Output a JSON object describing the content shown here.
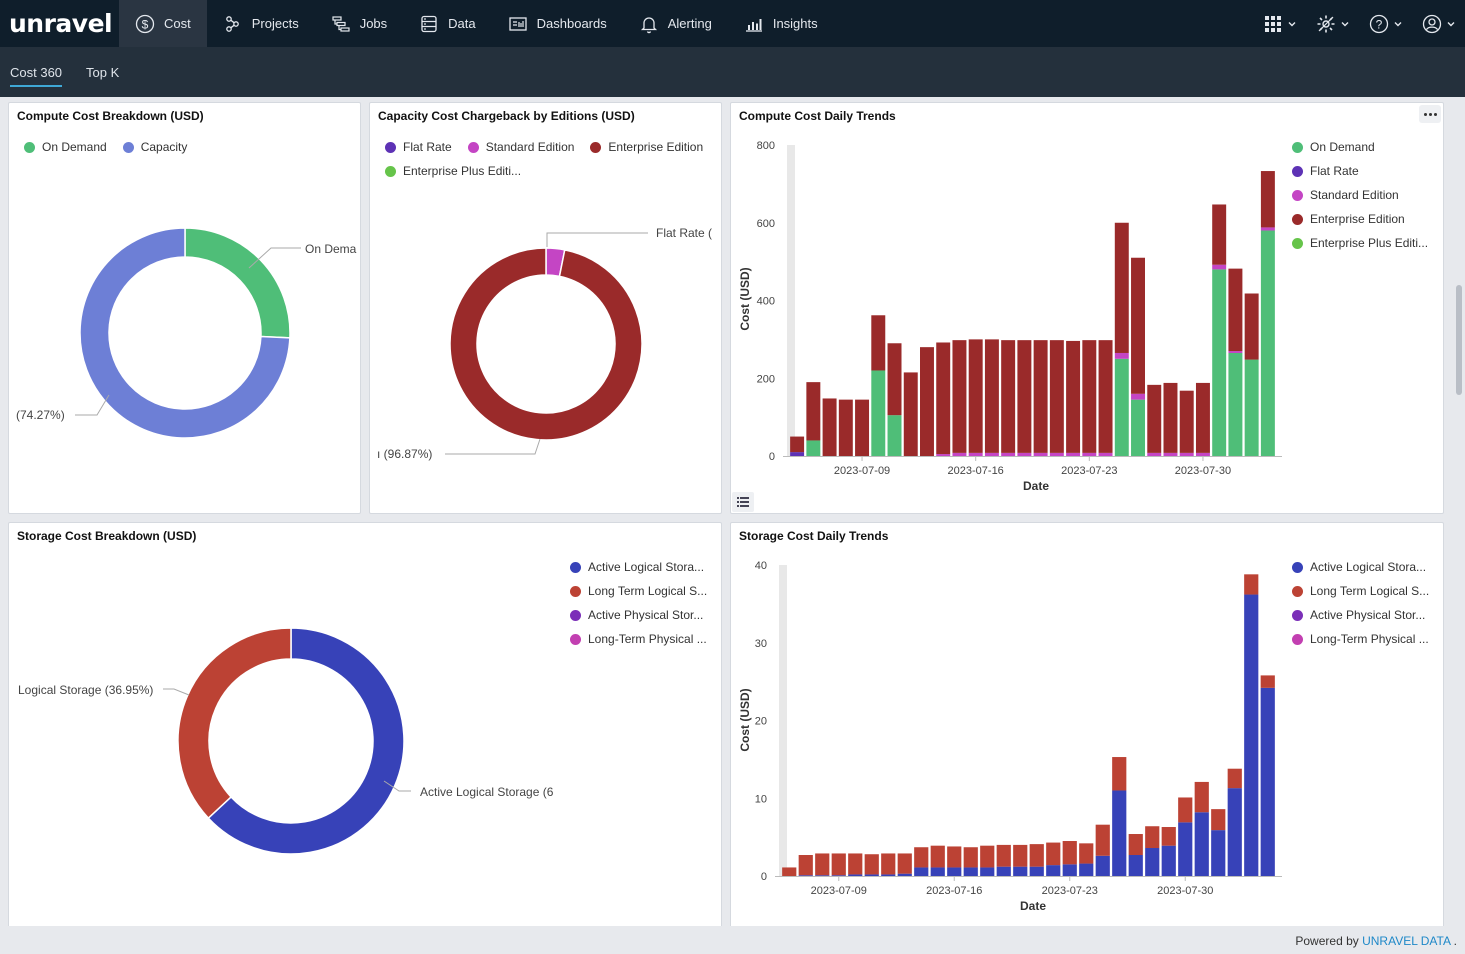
{
  "nav": {
    "logo": "unravel",
    "items": [
      {
        "label": "Cost",
        "icon": "dollar-circle-icon",
        "active": true
      },
      {
        "label": "Projects",
        "icon": "projects-icon"
      },
      {
        "label": "Jobs",
        "icon": "jobs-icon"
      },
      {
        "label": "Data",
        "icon": "database-icon"
      },
      {
        "label": "Dashboards",
        "icon": "dashboard-icon"
      },
      {
        "label": "Alerting",
        "icon": "bell-icon"
      },
      {
        "label": "Insights",
        "icon": "bar-chart-icon"
      }
    ],
    "right_icons": [
      "apps-grid-icon",
      "settings-gear-icon",
      "help-icon",
      "user-icon"
    ]
  },
  "subnav": {
    "tabs": [
      {
        "label": "Cost 360",
        "active": true
      },
      {
        "label": "Top K"
      }
    ]
  },
  "colors": {
    "on_demand": "#4fbe78",
    "capacity": "#6d7fd6",
    "flat_rate": "#5d32b5",
    "standard": "#c445c4",
    "enterprise": "#9a2a2a",
    "enterprise_plus": "#66c44a",
    "active_logical": "#3742b8",
    "long_term_logical": "#bc4234",
    "active_physical": "#7b2fb8",
    "long_term_physical": "#c23fb1"
  },
  "panels": {
    "compute_breakdown": {
      "title": "Compute Cost Breakdown (USD)",
      "legend": [
        "On Demand",
        "Capacity"
      ],
      "label_a": "On Dema",
      "label_b": "(74.27%)",
      "chart_data": {
        "type": "pie",
        "slices": [
          {
            "name": "On Demand",
            "pct": 25.73
          },
          {
            "name": "Capacity",
            "pct": 74.27
          }
        ]
      }
    },
    "capacity_chargeback": {
      "title": "Capacity Cost Chargeback by Editions (USD)",
      "legend": [
        "Flat Rate",
        "Standard Edition",
        "Enterprise Edition",
        "Enterprise Plus Editi..."
      ],
      "label_a": "Flat Rate (",
      "label_b": "ı (96.87%)",
      "chart_data": {
        "type": "pie",
        "slices": [
          {
            "name": "Standard Edition",
            "pct": 3.13
          },
          {
            "name": "Enterprise Edition",
            "pct": 96.87
          }
        ]
      }
    },
    "compute_trends": {
      "title": "Compute Cost Daily Trends",
      "legend": [
        "On Demand",
        "Flat Rate",
        "Standard Edition",
        "Enterprise Edition",
        "Enterprise Plus Editi..."
      ],
      "chart_data": {
        "type": "bar",
        "ylabel": "Cost (USD)",
        "xlabel": "Date",
        "ylim": [
          0,
          800
        ],
        "yticks": [
          0,
          200,
          400,
          600,
          800
        ],
        "xticks": [
          {
            "i": 4,
            "label": "2023-07-09"
          },
          {
            "i": 11,
            "label": "2023-07-16"
          },
          {
            "i": 18,
            "label": "2023-07-23"
          },
          {
            "i": 25,
            "label": "2023-07-30"
          }
        ],
        "series": [
          {
            "name": "On Demand",
            "color": "#4fbe78",
            "values": [
              0,
              40,
              0,
              0,
              0,
              220,
              105,
              0,
              0,
              0,
              0,
              0,
              0,
              0,
              0,
              0,
              0,
              0,
              0,
              0,
              250,
              145,
              0,
              0,
              0,
              0,
              480,
              265,
              248,
              580
            ]
          },
          {
            "name": "Flat Rate",
            "color": "#5d32b5",
            "values": [
              10,
              0,
              0,
              0,
              0,
              0,
              0,
              0,
              0,
              0,
              0,
              0,
              0,
              0,
              0,
              0,
              0,
              0,
              0,
              0,
              0,
              0,
              0,
              0,
              0,
              0,
              0,
              0,
              0,
              0
            ]
          },
          {
            "name": "Standard Edition",
            "color": "#c445c4",
            "values": [
              0,
              0,
              0,
              0,
              0,
              0,
              0,
              0,
              0,
              5,
              8,
              8,
              8,
              8,
              8,
              8,
              8,
              8,
              8,
              8,
              15,
              15,
              8,
              8,
              8,
              8,
              12,
              5,
              0,
              8
            ]
          },
          {
            "name": "Enterprise Edition",
            "color": "#9a2a2a",
            "values": [
              40,
              150,
              148,
              145,
              145,
              142,
              185,
              215,
              280,
              287,
              290,
              292,
              292,
              290,
              290,
              290,
              290,
              288,
              290,
              290,
              335,
              350,
              175,
              180,
              160,
              180,
              155,
              212,
              170,
              145
            ]
          },
          {
            "name": "Enterprise Plus Edition",
            "color": "#66c44a",
            "values": [
              0,
              0,
              0,
              0,
              0,
              0,
              0,
              0,
              0,
              0,
              0,
              0,
              0,
              0,
              0,
              0,
              0,
              0,
              0,
              0,
              0,
              0,
              0,
              0,
              0,
              0,
              0,
              0,
              0,
              0
            ]
          }
        ]
      }
    },
    "storage_breakdown": {
      "title": "Storage Cost Breakdown (USD)",
      "legend": [
        "Active Logical Stora...",
        "Long Term Logical S...",
        "Active Physical Stor...",
        "Long-Term Physical ..."
      ],
      "label_a": "Logical Storage (36.95%)",
      "label_b": "Active Logical Storage (6",
      "chart_data": {
        "type": "pie",
        "slices": [
          {
            "name": "Active Logical Storage",
            "pct": 63.05
          },
          {
            "name": "Long Term Logical Storage",
            "pct": 36.95
          }
        ]
      }
    },
    "storage_trends": {
      "title": "Storage Cost Daily Trends",
      "legend": [
        "Active Logical Stora...",
        "Long Term Logical S...",
        "Active Physical Stor...",
        "Long-Term Physical ..."
      ],
      "chart_data": {
        "type": "bar",
        "ylabel": "Cost (USD)",
        "xlabel": "Date",
        "ylim": [
          0,
          40
        ],
        "yticks": [
          0,
          10,
          20,
          30,
          40
        ],
        "xticks": [
          {
            "i": 3,
            "label": "2023-07-09"
          },
          {
            "i": 10,
            "label": "2023-07-16"
          },
          {
            "i": 17,
            "label": "2023-07-23"
          },
          {
            "i": 24,
            "label": "2023-07-30"
          }
        ],
        "series": [
          {
            "name": "Active Logical Storage",
            "color": "#3742b8",
            "values": [
              0,
              0.1,
              0.1,
              0.1,
              0.2,
              0.2,
              0.2,
              0.3,
              1.1,
              1.1,
              1.1,
              1.1,
              1.1,
              1.2,
              1.2,
              1.2,
              1.4,
              1.5,
              1.6,
              2.6,
              11,
              2.7,
              3.6,
              3.9,
              6.9,
              8.2,
              5.9,
              11.3,
              36.2,
              24.2
            ]
          },
          {
            "name": "Long Term Logical Storage",
            "color": "#bc4234",
            "values": [
              1.1,
              2.6,
              2.8,
              2.8,
              2.7,
              2.6,
              2.7,
              2.6,
              2.6,
              2.8,
              2.7,
              2.6,
              2.8,
              2.8,
              2.8,
              2.9,
              2.9,
              3.0,
              2.6,
              4.0,
              4.3,
              2.7,
              2.8,
              2.4,
              3.2,
              3.9,
              2.7,
              2.5,
              2.6,
              1.6
            ]
          },
          {
            "name": "Active Physical Storage",
            "color": "#7b2fb8",
            "values": [
              0,
              0,
              0,
              0,
              0,
              0,
              0,
              0,
              0,
              0,
              0,
              0,
              0,
              0,
              0,
              0,
              0,
              0,
              0,
              0,
              0,
              0,
              0,
              0,
              0,
              0,
              0,
              0,
              0,
              0
            ]
          },
          {
            "name": "Long-Term Physical Storage",
            "color": "#c23fb1",
            "values": [
              0,
              0,
              0,
              0,
              0,
              0,
              0,
              0,
              0,
              0,
              0,
              0,
              0,
              0,
              0,
              0,
              0,
              0,
              0,
              0,
              0,
              0,
              0,
              0,
              0,
              0,
              0,
              0,
              0,
              0
            ]
          }
        ]
      }
    }
  },
  "footer": {
    "prefix": "Powered by ",
    "brand": "UNRAVEL DATA",
    "suffix": " ."
  }
}
